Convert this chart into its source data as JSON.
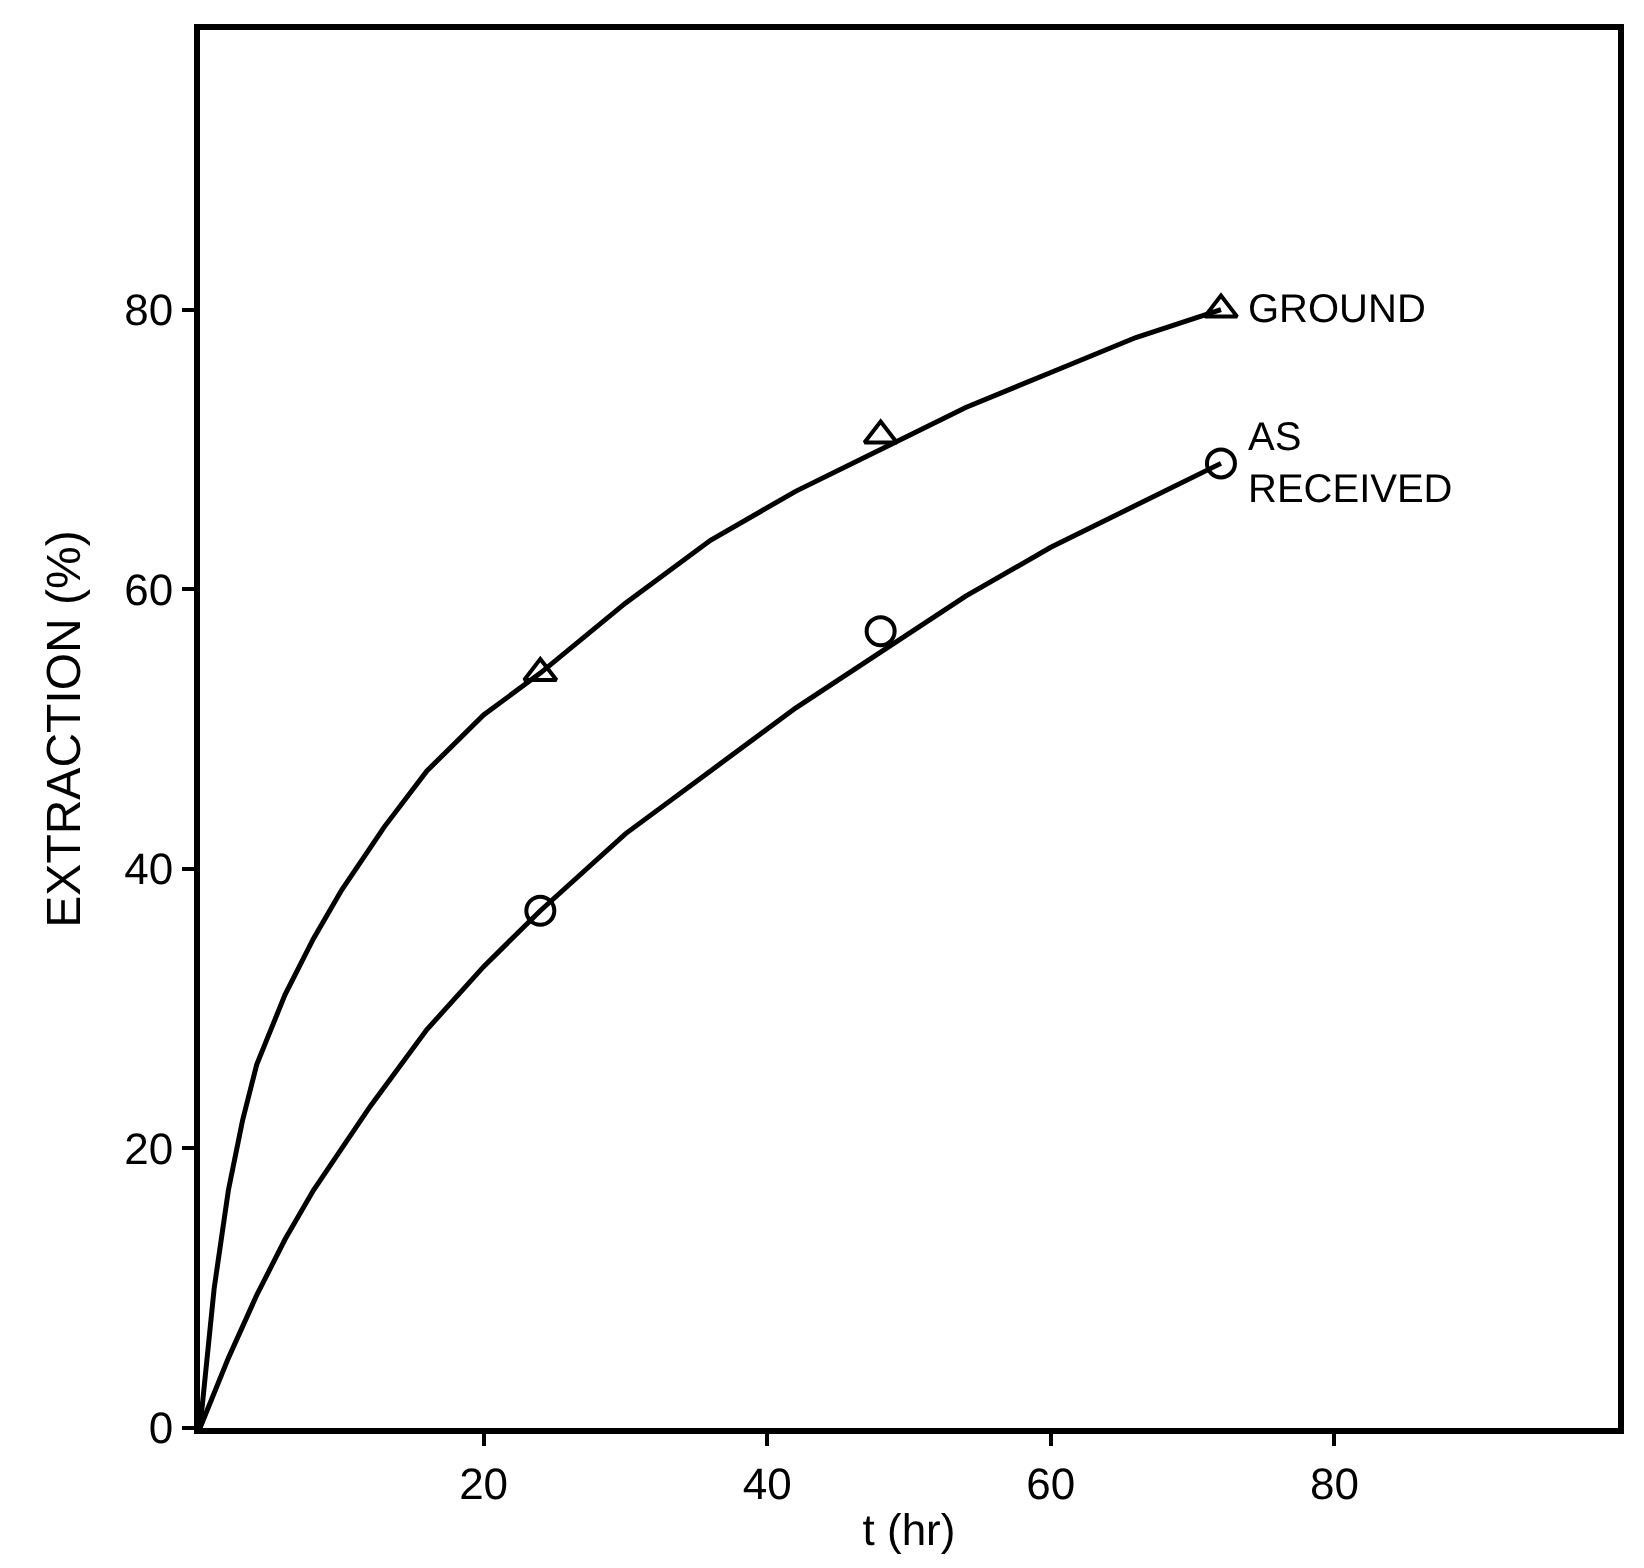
{
  "chart_data": {
    "type": "scatter",
    "xlabel": "t (hr)",
    "ylabel": "EXTRACTION (%)",
    "xlim": [
      0,
      100
    ],
    "ylim": [
      0,
      100
    ],
    "xticks": [
      20,
      40,
      60,
      80
    ],
    "yticks": [
      0,
      20,
      40,
      60,
      80
    ],
    "legend": false,
    "series": [
      {
        "name": "GROUND",
        "color": "#000000",
        "marker": "triangle",
        "x": [
          24,
          48,
          72
        ],
        "values": [
          54,
          71,
          80
        ]
      },
      {
        "name": "AS RECEIVED",
        "color": "#000000",
        "marker": "circle",
        "x": [
          24,
          48,
          72
        ],
        "values": [
          37,
          57,
          69
        ]
      },
      {
        "type": "line",
        "color": "#000000",
        "marker": "none",
        "line_style": "solid",
        "x": [
          0,
          1,
          2,
          3,
          4,
          6,
          8,
          10,
          13,
          16,
          20,
          24,
          30,
          36,
          42,
          48,
          54,
          60,
          66,
          72
        ],
        "values": [
          0,
          10,
          17,
          22,
          26,
          31,
          35,
          38.5,
          43,
          47,
          51,
          54,
          59,
          63.5,
          67,
          70,
          73,
          75.5,
          78,
          80
        ]
      },
      {
        "type": "line",
        "color": "#000000",
        "marker": "none",
        "line_style": "solid",
        "x": [
          0,
          2,
          4,
          6,
          8,
          10,
          12,
          16,
          20,
          24,
          30,
          36,
          42,
          48,
          54,
          60,
          66,
          72
        ],
        "values": [
          0,
          5,
          9.5,
          13.5,
          17,
          20,
          23,
          28.5,
          33,
          37,
          42.5,
          47,
          51.5,
          55.5,
          59.5,
          63,
          66,
          69
        ]
      }
    ]
  }
}
